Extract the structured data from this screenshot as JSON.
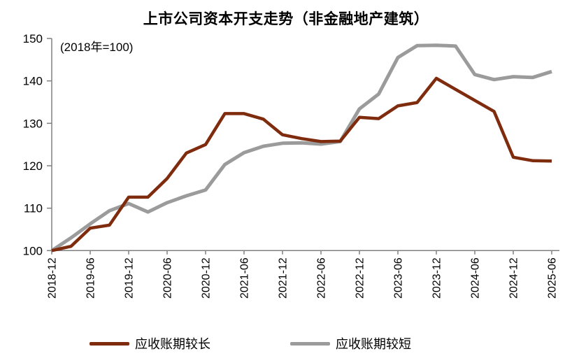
{
  "chart_data": {
    "type": "line",
    "title": "上市公司资本开支走势（非金融地产建筑）",
    "note": "(2018年=100)",
    "categories": [
      "2018-12",
      "2019-03",
      "2019-06",
      "2019-09",
      "2019-12",
      "2020-03",
      "2020-06",
      "2020-09",
      "2020-12",
      "2021-03",
      "2021-06",
      "2021-09",
      "2021-12",
      "2022-03",
      "2022-06",
      "2022-09",
      "2022-12",
      "2023-03",
      "2023-06",
      "2023-09",
      "2023-12",
      "2024-03",
      "2024-06",
      "2024-09",
      "2024-12",
      "2025-03",
      "2025-06"
    ],
    "x_tick_labels": [
      "2018-12",
      "2019-06",
      "2019-12",
      "2020-06",
      "2020-12",
      "2021-06",
      "2021-12",
      "2022-06",
      "2022-12",
      "2023-06",
      "2023-12",
      "2024-06",
      "2024-12",
      "2025-06"
    ],
    "x_tick_indices": [
      0,
      2,
      4,
      6,
      8,
      10,
      12,
      14,
      16,
      18,
      20,
      22,
      24,
      26
    ],
    "series": [
      {
        "name": "应收账期较长",
        "color": "#7F2B0D",
        "values": [
          100,
          101,
          105.3,
          106,
          112.6,
          112.6,
          117,
          123,
          125,
          132.3,
          132.3,
          131,
          127.3,
          126.4,
          125.7,
          125.8,
          131.4,
          131.1,
          134.1,
          134.9,
          140.6,
          138,
          135.4,
          132.8,
          122,
          121.2,
          121.1
        ]
      },
      {
        "name": "应收账期较短",
        "color": "#9B9B9B",
        "values": [
          100,
          103,
          106.3,
          109.4,
          111.1,
          109.1,
          111.3,
          112.9,
          114.3,
          120.3,
          123.1,
          124.6,
          125.3,
          125.4,
          125.1,
          125.7,
          133.4,
          136.9,
          145.5,
          148.3,
          148.4,
          148.2,
          141.5,
          140.3,
          141,
          140.8,
          142.2
        ]
      }
    ],
    "ylim": [
      100,
      150
    ],
    "y_ticks": [
      100,
      110,
      120,
      130,
      140,
      150
    ],
    "grid": "off",
    "legend_position": "bottom",
    "axis_color": "#808080",
    "text_color": "#000000"
  }
}
